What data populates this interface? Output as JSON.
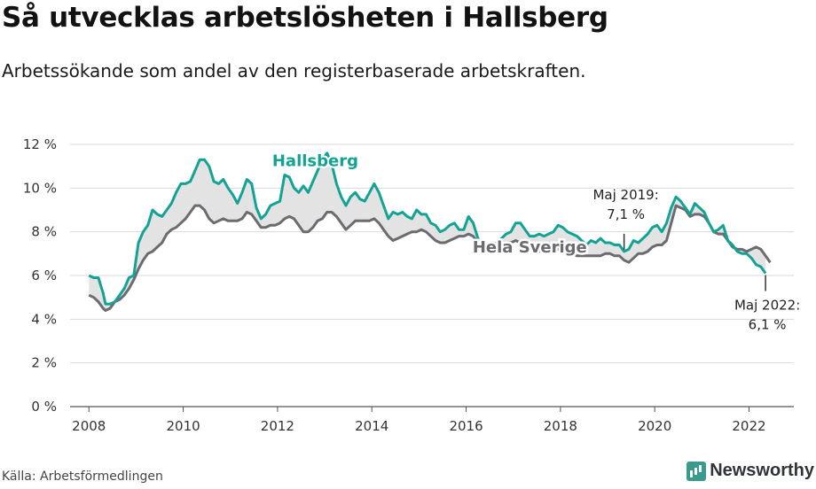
{
  "title": "Så utvecklas arbetslösheten i Hallsberg",
  "subtitle": "Arbetssökande som andel av den registerbaserade arbetskraften.",
  "source": "Källa: Arbetsförmedlingen",
  "brand": "Newsworthy",
  "colors": {
    "hallsberg": "#13a394",
    "sverige": "#6b6b70",
    "fill": "#e3e3e3",
    "grid": "#d9d9d9",
    "brand": "#3a9a8e"
  },
  "chart_data": {
    "type": "line",
    "ylim": [
      0,
      12
    ],
    "yticks": [
      0,
      2,
      4,
      6,
      8,
      10,
      12
    ],
    "ytick_labels": [
      "0 %",
      "2 %",
      "4 %",
      "6 %",
      "8 %",
      "10 %",
      "12 %"
    ],
    "xlim": [
      2007.6,
      2022.95
    ],
    "xticks": [
      2008,
      2010,
      2012,
      2014,
      2016,
      2018,
      2020,
      2022
    ],
    "xtick_labels": [
      "2008",
      "2010",
      "2012",
      "2014",
      "2016",
      "2018",
      "2020",
      "2022"
    ],
    "grid": true,
    "series": [
      {
        "name": "Hallsberg",
        "points": [
          [
            2008.0,
            6.0
          ],
          [
            2008.1,
            5.9
          ],
          [
            2008.2,
            5.9
          ],
          [
            2008.3,
            5.2
          ],
          [
            2008.35,
            4.7
          ],
          [
            2008.45,
            4.7
          ],
          [
            2008.55,
            4.8
          ],
          [
            2008.65,
            5.1
          ],
          [
            2008.75,
            5.4
          ],
          [
            2008.85,
            5.9
          ],
          [
            2008.95,
            6.0
          ],
          [
            2009.05,
            7.5
          ],
          [
            2009.15,
            8.0
          ],
          [
            2009.25,
            8.3
          ],
          [
            2009.35,
            9.0
          ],
          [
            2009.45,
            8.8
          ],
          [
            2009.55,
            8.7
          ],
          [
            2009.65,
            9.0
          ],
          [
            2009.75,
            9.3
          ],
          [
            2009.85,
            9.8
          ],
          [
            2009.95,
            10.2
          ],
          [
            2010.05,
            10.2
          ],
          [
            2010.15,
            10.3
          ],
          [
            2010.25,
            10.8
          ],
          [
            2010.35,
            11.3
          ],
          [
            2010.45,
            11.3
          ],
          [
            2010.55,
            11.0
          ],
          [
            2010.65,
            10.3
          ],
          [
            2010.75,
            10.2
          ],
          [
            2010.85,
            10.4
          ],
          [
            2010.95,
            10.0
          ],
          [
            2011.05,
            9.7
          ],
          [
            2011.15,
            9.3
          ],
          [
            2011.25,
            9.8
          ],
          [
            2011.35,
            10.4
          ],
          [
            2011.45,
            10.2
          ],
          [
            2011.55,
            9.1
          ],
          [
            2011.65,
            8.6
          ],
          [
            2011.75,
            8.8
          ],
          [
            2011.85,
            9.2
          ],
          [
            2011.95,
            9.3
          ],
          [
            2012.05,
            9.4
          ],
          [
            2012.15,
            10.6
          ],
          [
            2012.25,
            10.5
          ],
          [
            2012.35,
            10.0
          ],
          [
            2012.45,
            9.8
          ],
          [
            2012.55,
            10.1
          ],
          [
            2012.65,
            9.8
          ],
          [
            2012.75,
            10.3
          ],
          [
            2012.85,
            10.8
          ],
          [
            2012.95,
            11.3
          ],
          [
            2013.05,
            11.6
          ],
          [
            2013.15,
            11.1
          ],
          [
            2013.25,
            10.2
          ],
          [
            2013.35,
            9.6
          ],
          [
            2013.45,
            9.2
          ],
          [
            2013.55,
            9.6
          ],
          [
            2013.65,
            9.8
          ],
          [
            2013.75,
            9.5
          ],
          [
            2013.85,
            9.4
          ],
          [
            2013.95,
            9.8
          ],
          [
            2014.05,
            10.2
          ],
          [
            2014.15,
            9.8
          ],
          [
            2014.25,
            9.2
          ],
          [
            2014.35,
            8.6
          ],
          [
            2014.45,
            8.9
          ],
          [
            2014.55,
            8.8
          ],
          [
            2014.65,
            8.9
          ],
          [
            2014.75,
            8.7
          ],
          [
            2014.85,
            8.6
          ],
          [
            2014.95,
            9.0
          ],
          [
            2015.05,
            8.8
          ],
          [
            2015.15,
            8.8
          ],
          [
            2015.25,
            8.4
          ],
          [
            2015.35,
            8.3
          ],
          [
            2015.45,
            8.0
          ],
          [
            2015.55,
            8.1
          ],
          [
            2015.65,
            8.3
          ],
          [
            2015.75,
            8.4
          ],
          [
            2015.85,
            8.1
          ],
          [
            2015.95,
            8.1
          ],
          [
            2016.05,
            8.7
          ],
          [
            2016.15,
            8.4
          ],
          [
            2016.25,
            7.7
          ],
          [
            2016.35,
            7.5
          ],
          [
            2016.45,
            7.3
          ],
          [
            2016.55,
            7.3
          ],
          [
            2016.65,
            7.5
          ],
          [
            2016.75,
            7.7
          ],
          [
            2016.85,
            7.9
          ],
          [
            2016.95,
            8.0
          ],
          [
            2017.05,
            8.4
          ],
          [
            2017.15,
            8.4
          ],
          [
            2017.25,
            8.1
          ],
          [
            2017.35,
            7.8
          ],
          [
            2017.45,
            7.8
          ],
          [
            2017.55,
            7.9
          ],
          [
            2017.65,
            7.8
          ],
          [
            2017.75,
            7.9
          ],
          [
            2017.85,
            8.0
          ],
          [
            2017.95,
            8.3
          ],
          [
            2018.05,
            8.2
          ],
          [
            2018.15,
            8.0
          ],
          [
            2018.25,
            7.9
          ],
          [
            2018.35,
            7.8
          ],
          [
            2018.45,
            7.6
          ],
          [
            2018.55,
            7.4
          ],
          [
            2018.65,
            7.6
          ],
          [
            2018.75,
            7.5
          ],
          [
            2018.85,
            7.7
          ],
          [
            2018.95,
            7.5
          ],
          [
            2019.05,
            7.5
          ],
          [
            2019.15,
            7.4
          ],
          [
            2019.25,
            7.4
          ],
          [
            2019.35,
            7.1
          ],
          [
            2019.45,
            7.2
          ],
          [
            2019.55,
            7.6
          ],
          [
            2019.65,
            7.5
          ],
          [
            2019.75,
            7.7
          ],
          [
            2019.85,
            7.9
          ],
          [
            2019.95,
            8.2
          ],
          [
            2020.05,
            8.3
          ],
          [
            2020.15,
            8.0
          ],
          [
            2020.25,
            8.4
          ],
          [
            2020.35,
            9.1
          ],
          [
            2020.45,
            9.6
          ],
          [
            2020.55,
            9.4
          ],
          [
            2020.65,
            9.1
          ],
          [
            2020.75,
            8.8
          ],
          [
            2020.85,
            9.3
          ],
          [
            2020.95,
            9.1
          ],
          [
            2021.05,
            8.9
          ],
          [
            2021.15,
            8.4
          ],
          [
            2021.25,
            8.0
          ],
          [
            2021.35,
            8.1
          ],
          [
            2021.45,
            8.3
          ],
          [
            2021.55,
            7.6
          ],
          [
            2021.65,
            7.4
          ],
          [
            2021.75,
            7.1
          ],
          [
            2021.85,
            7.0
          ],
          [
            2021.95,
            7.0
          ],
          [
            2022.05,
            6.8
          ],
          [
            2022.15,
            6.5
          ],
          [
            2022.25,
            6.4
          ],
          [
            2022.35,
            6.1
          ]
        ]
      },
      {
        "name": "Hela Sverige",
        "points": [
          [
            2008.0,
            5.1
          ],
          [
            2008.1,
            5.0
          ],
          [
            2008.2,
            4.8
          ],
          [
            2008.3,
            4.5
          ],
          [
            2008.35,
            4.4
          ],
          [
            2008.45,
            4.5
          ],
          [
            2008.55,
            4.8
          ],
          [
            2008.65,
            4.9
          ],
          [
            2008.75,
            5.1
          ],
          [
            2008.85,
            5.4
          ],
          [
            2008.95,
            5.8
          ],
          [
            2009.05,
            6.3
          ],
          [
            2009.15,
            6.7
          ],
          [
            2009.25,
            7.0
          ],
          [
            2009.35,
            7.1
          ],
          [
            2009.45,
            7.3
          ],
          [
            2009.55,
            7.5
          ],
          [
            2009.65,
            7.9
          ],
          [
            2009.75,
            8.1
          ],
          [
            2009.85,
            8.2
          ],
          [
            2009.95,
            8.4
          ],
          [
            2010.05,
            8.6
          ],
          [
            2010.15,
            8.9
          ],
          [
            2010.25,
            9.2
          ],
          [
            2010.35,
            9.2
          ],
          [
            2010.45,
            9.0
          ],
          [
            2010.55,
            8.6
          ],
          [
            2010.65,
            8.4
          ],
          [
            2010.75,
            8.5
          ],
          [
            2010.85,
            8.6
          ],
          [
            2010.95,
            8.5
          ],
          [
            2011.05,
            8.5
          ],
          [
            2011.15,
            8.5
          ],
          [
            2011.25,
            8.6
          ],
          [
            2011.35,
            8.9
          ],
          [
            2011.45,
            8.8
          ],
          [
            2011.55,
            8.5
          ],
          [
            2011.65,
            8.2
          ],
          [
            2011.75,
            8.2
          ],
          [
            2011.85,
            8.3
          ],
          [
            2011.95,
            8.3
          ],
          [
            2012.05,
            8.4
          ],
          [
            2012.15,
            8.6
          ],
          [
            2012.25,
            8.7
          ],
          [
            2012.35,
            8.6
          ],
          [
            2012.45,
            8.3
          ],
          [
            2012.55,
            8.0
          ],
          [
            2012.65,
            8.0
          ],
          [
            2012.75,
            8.2
          ],
          [
            2012.85,
            8.5
          ],
          [
            2012.95,
            8.6
          ],
          [
            2013.05,
            8.9
          ],
          [
            2013.15,
            8.9
          ],
          [
            2013.25,
            8.7
          ],
          [
            2013.35,
            8.4
          ],
          [
            2013.45,
            8.1
          ],
          [
            2013.55,
            8.3
          ],
          [
            2013.65,
            8.5
          ],
          [
            2013.75,
            8.5
          ],
          [
            2013.85,
            8.5
          ],
          [
            2013.95,
            8.5
          ],
          [
            2014.05,
            8.6
          ],
          [
            2014.15,
            8.4
          ],
          [
            2014.25,
            8.1
          ],
          [
            2014.35,
            7.8
          ],
          [
            2014.45,
            7.6
          ],
          [
            2014.55,
            7.7
          ],
          [
            2014.65,
            7.8
          ],
          [
            2014.75,
            7.9
          ],
          [
            2014.85,
            8.0
          ],
          [
            2014.95,
            8.0
          ],
          [
            2015.05,
            8.1
          ],
          [
            2015.15,
            8.0
          ],
          [
            2015.25,
            7.8
          ],
          [
            2015.35,
            7.6
          ],
          [
            2015.45,
            7.5
          ],
          [
            2015.55,
            7.5
          ],
          [
            2015.65,
            7.6
          ],
          [
            2015.75,
            7.7
          ],
          [
            2015.85,
            7.8
          ],
          [
            2015.95,
            7.8
          ],
          [
            2016.05,
            7.9
          ],
          [
            2016.15,
            7.8
          ],
          [
            2016.25,
            7.5
          ],
          [
            2016.35,
            7.3
          ],
          [
            2016.45,
            7.1
          ],
          [
            2016.55,
            7.1
          ],
          [
            2016.65,
            7.2
          ],
          [
            2016.75,
            7.4
          ],
          [
            2016.85,
            7.5
          ],
          [
            2016.95,
            7.5
          ],
          [
            2017.05,
            7.6
          ],
          [
            2017.15,
            7.5
          ],
          [
            2017.25,
            7.4
          ],
          [
            2017.35,
            7.2
          ],
          [
            2017.45,
            7.1
          ],
          [
            2017.55,
            7.1
          ],
          [
            2017.65,
            7.2
          ],
          [
            2017.75,
            7.2
          ],
          [
            2017.85,
            7.2
          ],
          [
            2017.95,
            7.2
          ],
          [
            2018.05,
            7.2
          ],
          [
            2018.15,
            7.1
          ],
          [
            2018.25,
            7.0
          ],
          [
            2018.35,
            6.9
          ],
          [
            2018.45,
            6.9
          ],
          [
            2018.55,
            6.9
          ],
          [
            2018.65,
            6.9
          ],
          [
            2018.75,
            6.9
          ],
          [
            2018.85,
            6.9
          ],
          [
            2018.95,
            7.0
          ],
          [
            2019.05,
            7.0
          ],
          [
            2019.15,
            6.9
          ],
          [
            2019.25,
            6.9
          ],
          [
            2019.35,
            6.7
          ],
          [
            2019.45,
            6.6
          ],
          [
            2019.55,
            6.8
          ],
          [
            2019.65,
            7.0
          ],
          [
            2019.75,
            7.0
          ],
          [
            2019.85,
            7.1
          ],
          [
            2019.95,
            7.3
          ],
          [
            2020.05,
            7.4
          ],
          [
            2020.15,
            7.4
          ],
          [
            2020.25,
            7.6
          ],
          [
            2020.35,
            8.4
          ],
          [
            2020.45,
            9.2
          ],
          [
            2020.55,
            9.1
          ],
          [
            2020.65,
            9.0
          ],
          [
            2020.75,
            8.7
          ],
          [
            2020.85,
            8.8
          ],
          [
            2020.95,
            8.8
          ],
          [
            2021.05,
            8.7
          ],
          [
            2021.15,
            8.4
          ],
          [
            2021.25,
            8.0
          ],
          [
            2021.35,
            7.9
          ],
          [
            2021.45,
            7.9
          ],
          [
            2021.55,
            7.6
          ],
          [
            2021.65,
            7.3
          ],
          [
            2021.75,
            7.2
          ],
          [
            2021.85,
            7.2
          ],
          [
            2021.95,
            7.1
          ],
          [
            2022.05,
            7.2
          ],
          [
            2022.15,
            7.3
          ],
          [
            2022.25,
            7.2
          ],
          [
            2022.35,
            6.9
          ],
          [
            2022.45,
            6.6
          ]
        ]
      }
    ],
    "labels": {
      "hallsberg": "Hallsberg",
      "sverige": "Hela Sverige"
    },
    "annotations": [
      {
        "line1": "Maj 2019:",
        "line2": "7,1 %",
        "x": 2019.35,
        "y": 7.1
      },
      {
        "line1": "Maj 2022:",
        "line2": "6,1 %",
        "x": 2022.35,
        "y": 6.1
      }
    ]
  }
}
